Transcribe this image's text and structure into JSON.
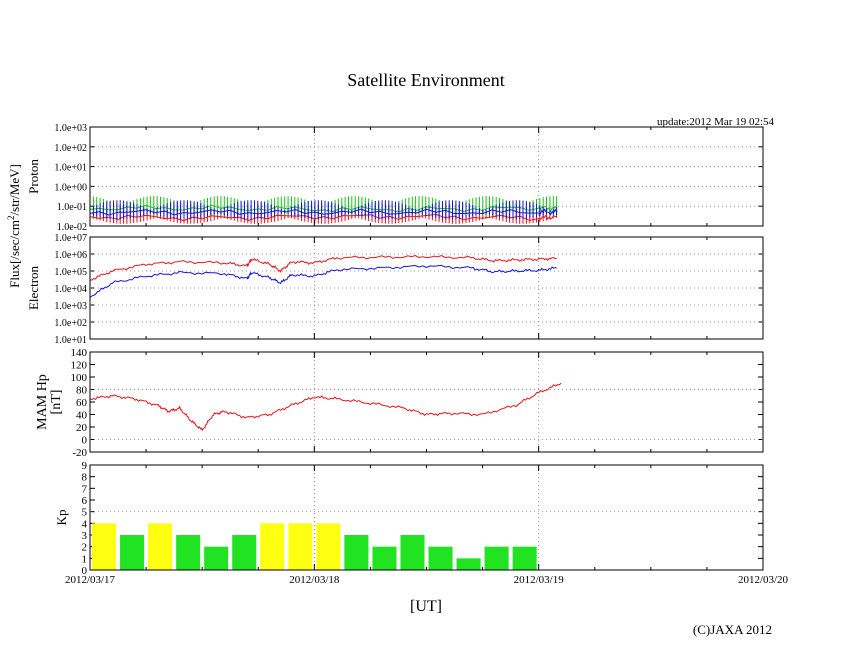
{
  "title": "Satellite Environment",
  "update_label": "update:2012 Mar 19 02:54",
  "xlabel": "[UT]",
  "copyright": "(C)JAXA 2012",
  "flux_label": {
    "prefix": "Flux[/sec/cm",
    "sup": "2",
    "suffix": "/str/MeV]"
  },
  "x_ticks": [
    "2012/03/17",
    "2012/03/18",
    "2012/03/19",
    "2012/03/20"
  ],
  "colors": {
    "red": "#e8121a",
    "green": "#19c219",
    "blue": "#1616d6",
    "yellow": "#ffff11",
    "bar_green": "#22e322"
  },
  "chart_data": [
    {
      "id": "proton",
      "type": "line",
      "ylabel": "Proton",
      "yscale": "log",
      "ylim": [
        0.01,
        1000
      ],
      "ytick_labels": [
        "1.0e+03",
        "1.0e+02",
        "1.0e+01",
        "1.0e+00",
        "1.0e-01",
        "1.0e-02"
      ],
      "x_range_days": [
        0,
        3
      ],
      "grid": "dotted",
      "series": [
        {
          "color": "red",
          "points": [
            [
              0,
              0.03
            ],
            [
              0.5,
              0.025
            ],
            [
              1.0,
              0.03
            ],
            [
              1.5,
              0.03
            ],
            [
              2.0,
              0.025
            ],
            [
              2.08,
              0.03
            ]
          ]
        },
        {
          "color": "green",
          "points": [
            [
              0,
              0.08
            ],
            [
              0.5,
              0.08
            ],
            [
              1.0,
              0.07
            ],
            [
              1.5,
              0.07
            ],
            [
              2.0,
              0.08
            ],
            [
              2.08,
              0.08
            ]
          ]
        },
        {
          "color": "blue",
          "points": [
            [
              0,
              0.05
            ],
            [
              0.5,
              0.05
            ],
            [
              1.0,
              0.05
            ],
            [
              1.5,
              0.05
            ],
            [
              2.0,
              0.05
            ],
            [
              2.08,
              0.05
            ]
          ]
        }
      ]
    },
    {
      "id": "electron",
      "type": "line",
      "ylabel": "Electron",
      "yscale": "log",
      "ylim": [
        10,
        10000000
      ],
      "ytick_labels": [
        "1.0e+07",
        "1.0e+06",
        "1.0e+05",
        "1.0e+04",
        "1.0e+03",
        "1.0e+02",
        "1.0e+01"
      ],
      "x_range_days": [
        0,
        3
      ],
      "grid": "dotted",
      "series": [
        {
          "color": "red",
          "points": [
            [
              0,
              30000
            ],
            [
              0.1,
              100000
            ],
            [
              0.25,
              250000
            ],
            [
              0.4,
              350000
            ],
            [
              0.6,
              300000
            ],
            [
              0.7,
              200000
            ],
            [
              0.72,
              500000
            ],
            [
              0.8,
              250000
            ],
            [
              0.85,
              100000
            ],
            [
              0.9,
              350000
            ],
            [
              1.0,
              300000
            ],
            [
              1.1,
              600000
            ],
            [
              1.3,
              650000
            ],
            [
              1.5,
              700000
            ],
            [
              1.7,
              600000
            ],
            [
              1.8,
              400000
            ],
            [
              1.9,
              450000
            ],
            [
              2.0,
              500000
            ],
            [
              2.08,
              550000
            ]
          ]
        },
        {
          "color": "blue",
          "points": [
            [
              0,
              3000
            ],
            [
              0.1,
              20000
            ],
            [
              0.25,
              50000
            ],
            [
              0.4,
              80000
            ],
            [
              0.6,
              70000
            ],
            [
              0.7,
              35000
            ],
            [
              0.72,
              80000
            ],
            [
              0.8,
              40000
            ],
            [
              0.85,
              20000
            ],
            [
              0.9,
              60000
            ],
            [
              1.0,
              50000
            ],
            [
              1.1,
              120000
            ],
            [
              1.3,
              150000
            ],
            [
              1.5,
              200000
            ],
            [
              1.7,
              150000
            ],
            [
              1.8,
              90000
            ],
            [
              1.9,
              100000
            ],
            [
              2.0,
              110000
            ],
            [
              2.08,
              150000
            ]
          ]
        }
      ]
    },
    {
      "id": "mam",
      "type": "line",
      "ylabel": "MAM Hp",
      "yunit": "[nT]",
      "yscale": "linear",
      "ylim": [
        -20,
        140
      ],
      "yticks": [
        -20,
        0,
        20,
        40,
        60,
        80,
        100,
        120,
        140
      ],
      "x_range_days": [
        0,
        3
      ],
      "grid": "dotted",
      "series": [
        {
          "color": "red",
          "points": [
            [
              0,
              65
            ],
            [
              0.1,
              70
            ],
            [
              0.2,
              65
            ],
            [
              0.3,
              55
            ],
            [
              0.35,
              45
            ],
            [
              0.4,
              50
            ],
            [
              0.45,
              30
            ],
            [
              0.5,
              15
            ],
            [
              0.55,
              40
            ],
            [
              0.6,
              45
            ],
            [
              0.7,
              35
            ],
            [
              0.8,
              40
            ],
            [
              0.9,
              55
            ],
            [
              1.0,
              68
            ],
            [
              1.1,
              65
            ],
            [
              1.25,
              58
            ],
            [
              1.4,
              50
            ],
            [
              1.5,
              40
            ],
            [
              1.6,
              42
            ],
            [
              1.75,
              40
            ],
            [
              1.9,
              55
            ],
            [
              2.0,
              75
            ],
            [
              2.1,
              90
            ]
          ]
        }
      ]
    },
    {
      "id": "kp",
      "type": "bar",
      "ylabel": "Kp",
      "yscale": "linear",
      "ylim": [
        0,
        9
      ],
      "yticks": [
        0,
        1,
        2,
        3,
        4,
        5,
        6,
        7,
        8,
        9
      ],
      "x_range_days": [
        0,
        3
      ],
      "interval_hours": 3,
      "values": [
        4,
        3,
        4,
        3,
        2,
        3,
        4,
        4,
        4,
        3,
        2,
        3,
        2,
        1,
        2,
        2
      ],
      "threshold_color": {
        "yellow_if_at_least": 4
      }
    }
  ]
}
